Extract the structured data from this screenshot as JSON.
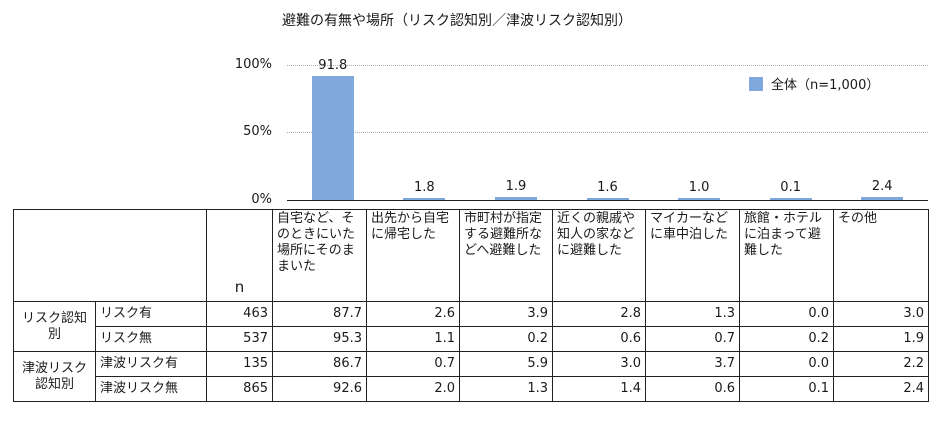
{
  "chart_data": {
    "type": "bar",
    "title": "避難の有無や場所（リスク認知別／津波リスク認知別）",
    "categories": [
      "自宅など、そのときにいた場所にそのままいた",
      "出先から自宅に帰宅した",
      "市町村が指定する避難所などへ避難した",
      "近くの親戚や知人の家などに避難した",
      "マイカーなどに車中泊した",
      "旅館・ホテルに泊まって避難した",
      "その他"
    ],
    "series": [
      {
        "name": "全体（n=1,000）",
        "values": [
          91.8,
          1.8,
          1.9,
          1.6,
          1.0,
          0.1,
          2.4
        ],
        "color": "#7FA9DC"
      }
    ],
    "ylim": [
      0,
      100
    ],
    "yticks": [
      "0%",
      "50%",
      "100%"
    ],
    "xlabel": "",
    "ylabel": "",
    "grid": true,
    "legend_position": "upper right"
  },
  "chart": {
    "title": "避難の有無や場所（リスク認知別／津波リスク認知別）",
    "yticks": {
      "t0": "0%",
      "t50": "50%",
      "t100": "100%"
    },
    "legend": "全体（n=1,000）",
    "labels": [
      "91.8",
      "1.8",
      "1.9",
      "1.6",
      "1.0",
      "0.1",
      "2.4"
    ]
  },
  "table": {
    "n_header": "n",
    "headers": [
      "自宅など、そのときにいた場所にそのままいた",
      "出先から自宅に帰宅した",
      "市町村が指定する避難所などへ避難した",
      "近くの親戚や知人の家などに避難した",
      "マイカーなどに車中泊した",
      "旅館・ホテルに泊まって避難した",
      "その他"
    ],
    "groups": [
      {
        "label": "リスク認知別",
        "rows": [
          {
            "label": "リスク有",
            "n": "463",
            "values": [
              "87.7",
              "2.6",
              "3.9",
              "2.8",
              "1.3",
              "0.0",
              "3.0"
            ]
          },
          {
            "label": "リスク無",
            "n": "537",
            "values": [
              "95.3",
              "1.1",
              "0.2",
              "0.6",
              "0.7",
              "0.2",
              "1.9"
            ]
          }
        ]
      },
      {
        "label": "津波リスク認知別",
        "rows": [
          {
            "label": "津波リスク有",
            "n": "135",
            "values": [
              "86.7",
              "0.7",
              "5.9",
              "3.0",
              "3.7",
              "0.0",
              "2.2"
            ]
          },
          {
            "label": "津波リスク無",
            "n": "865",
            "values": [
              "92.6",
              "2.0",
              "1.3",
              "1.4",
              "0.6",
              "0.1",
              "2.4"
            ]
          }
        ]
      }
    ]
  }
}
